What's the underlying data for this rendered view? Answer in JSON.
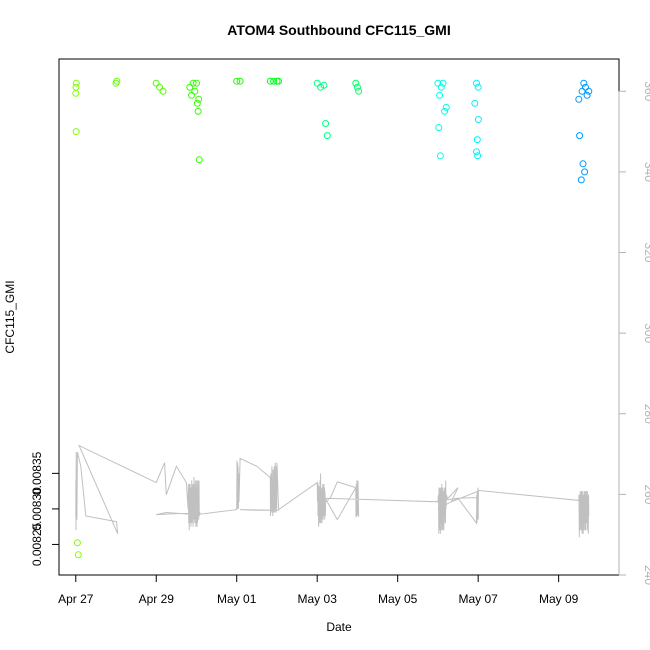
{
  "chart_data": {
    "type": "scatter",
    "title": "ATOM4 Southbound CFC115_GMI",
    "xlabel": "Date",
    "ylabel": "CFC115_GMI",
    "x_range": [
      "2017-04-26T14:00",
      "2017-05-10T12:00"
    ],
    "y_range": [
      0.008207,
      0.008933
    ],
    "y2_range": [
      240,
      368
    ],
    "x_ticks": [
      {
        "date": "2017-04-27",
        "label": "Apr 27"
      },
      {
        "date": "2017-04-29",
        "label": "Apr 29"
      },
      {
        "date": "2017-05-01",
        "label": "May 01"
      },
      {
        "date": "2017-05-03",
        "label": "May 03"
      },
      {
        "date": "2017-05-05",
        "label": "May 05"
      },
      {
        "date": "2017-05-07",
        "label": "May 07"
      },
      {
        "date": "2017-05-09",
        "label": "May 09"
      }
    ],
    "y_ticks": [
      {
        "value": 0.00825,
        "label": "0.00825"
      },
      {
        "value": 0.0083,
        "label": "0.00830"
      },
      {
        "value": 0.00835,
        "label": "0.00835"
      }
    ],
    "y2_ticks": [
      240,
      260,
      280,
      300,
      320,
      340,
      360
    ],
    "grid": false,
    "line_series": {
      "color": "#c0c0c0",
      "x": [
        "2017-04-27T00:00",
        "2017-04-27T00:05",
        "2017-04-27T00:10",
        "2017-04-27T00:15",
        "2017-04-27T00:25",
        "2017-04-27T00:40",
        "2017-04-27T01:00",
        "2017-04-27T03:00",
        "2017-04-27T06:00",
        "2017-04-28T00:20",
        "2017-04-28T01:00",
        "2017-04-27T02:00",
        "2017-04-29T00:00",
        "2017-04-29T05:00",
        "2017-04-29T06:00",
        "2017-04-29T12:00",
        "2017-04-29T18:00",
        "2017-04-29T19:00",
        "2017-04-29T19:10",
        "2017-04-29T19:20",
        "2017-04-29T19:30",
        "2017-04-29T19:40",
        "2017-04-29T19:50",
        "2017-04-29T20:00",
        "2017-04-29T20:10",
        "2017-04-29T20:20",
        "2017-04-29T20:30",
        "2017-04-29T20:40",
        "2017-04-29T20:50",
        "2017-04-29T21:00",
        "2017-04-29T21:10",
        "2017-04-29T21:20",
        "2017-04-29T21:30",
        "2017-04-29T21:40",
        "2017-04-29T21:50",
        "2017-04-29T22:00",
        "2017-04-29T22:10",
        "2017-04-29T22:20",
        "2017-04-29T22:30",
        "2017-04-29T22:40",
        "2017-04-29T22:50",
        "2017-04-29T23:00",
        "2017-04-29T23:10",
        "2017-04-29T23:20",
        "2017-04-29T23:30",
        "2017-04-29T23:40",
        "2017-04-29T23:50",
        "2017-04-30T00:00",
        "2017-04-30T00:10",
        "2017-04-30T00:20",
        "2017-04-30T00:30",
        "2017-04-30T00:40",
        "2017-04-30T00:50",
        "2017-04-30T01:00",
        "2017-04-30T01:10",
        "2017-04-30T01:20",
        "2017-04-30T01:30",
        "2017-04-30T01:40",
        "2017-04-30T02:00",
        "2017-04-29T00:00",
        "2017-04-29T06:00",
        "2017-04-30T00:00",
        "2017-05-01T00:00",
        "2017-05-01T00:10",
        "2017-05-01T00:20",
        "2017-05-01T00:30",
        "2017-05-01T00:40",
        "2017-05-01T00:50",
        "2017-05-01T01:00",
        "2017-05-01T01:10",
        "2017-05-01T01:20",
        "2017-05-01T02:00",
        "2017-05-01T12:00",
        "2017-05-01T20:00",
        "2017-05-01T20:10",
        "2017-05-01T20:20",
        "2017-05-01T20:30",
        "2017-05-01T20:40",
        "2017-05-01T20:50",
        "2017-05-01T21:00",
        "2017-05-01T21:10",
        "2017-05-01T21:20",
        "2017-05-01T21:30",
        "2017-05-01T21:40",
        "2017-05-01T21:50",
        "2017-05-01T22:00",
        "2017-05-01T22:10",
        "2017-05-01T22:20",
        "2017-05-01T22:30",
        "2017-05-01T22:40",
        "2017-05-01T22:50",
        "2017-05-01T23:00",
        "2017-05-01T23:10",
        "2017-05-01T23:20",
        "2017-05-01T23:30",
        "2017-05-01T23:40",
        "2017-05-01T23:50",
        "2017-05-02T00:00",
        "2017-05-02T01:00",
        "2017-05-01T02:00",
        "2017-05-01T12:00",
        "2017-05-02T00:00",
        "2017-05-02T01:00",
        "2017-05-03T00:00",
        "2017-05-03T00:10",
        "2017-05-03T00:20",
        "2017-05-03T00:30",
        "2017-05-03T00:40",
        "2017-05-03T00:50",
        "2017-05-03T01:00",
        "2017-05-03T01:10",
        "2017-05-03T01:20",
        "2017-05-03T01:30",
        "2017-05-03T01:40",
        "2017-05-03T01:50",
        "2017-05-03T02:00",
        "2017-05-03T02:10",
        "2017-05-03T02:20",
        "2017-05-03T02:30",
        "2017-05-03T02:40",
        "2017-05-03T02:50",
        "2017-05-03T03:00",
        "2017-05-03T03:10",
        "2017-05-03T03:20",
        "2017-05-03T03:30",
        "2017-05-03T03:40",
        "2017-05-03T03:50",
        "2017-05-03T04:00",
        "2017-05-03T04:10",
        "2017-05-03T04:20",
        "2017-05-03T04:30",
        "2017-05-03T04:40",
        "2017-05-03T04:50",
        "2017-05-03T05:00",
        "2017-05-03T08:00",
        "2017-05-03T12:00",
        "2017-05-03T23:00",
        "2017-05-03T23:10",
        "2017-05-03T23:20",
        "2017-05-03T23:30",
        "2017-05-03T23:40",
        "2017-05-03T23:50",
        "2017-05-04T00:00",
        "2017-05-04T00:10",
        "2017-05-04T00:20",
        "2017-05-04T00:30",
        "2017-05-04T00:40",
        "2017-05-03T23:00",
        "2017-05-03T12:00",
        "2017-05-03T00:00",
        "2017-05-03T05:00",
        "2017-05-06T00:00",
        "2017-05-06T00:10",
        "2017-05-06T00:20",
        "2017-05-06T00:30",
        "2017-05-06T00:40",
        "2017-05-06T00:50",
        "2017-05-06T01:00",
        "2017-05-06T01:10",
        "2017-05-06T01:20",
        "2017-05-06T01:30",
        "2017-05-06T01:40",
        "2017-05-06T01:50",
        "2017-05-06T02:00",
        "2017-05-06T02:10",
        "2017-05-06T02:20",
        "2017-05-06T02:30",
        "2017-05-06T02:40",
        "2017-05-06T02:50",
        "2017-05-06T03:00",
        "2017-05-06T03:10",
        "2017-05-06T03:20",
        "2017-05-06T03:30",
        "2017-05-06T03:40",
        "2017-05-06T03:50",
        "2017-05-06T04:00",
        "2017-05-06T04:10",
        "2017-05-06T04:20",
        "2017-05-06T04:30",
        "2017-05-06T04:40",
        "2017-05-06T04:50",
        "2017-05-06T05:00",
        "2017-05-06T06:00",
        "2017-05-06T12:00",
        "2017-05-06T23:00",
        "2017-05-06T23:10",
        "2017-05-06T23:20",
        "2017-05-06T23:30",
        "2017-05-06T23:40",
        "2017-05-06T23:50",
        "2017-05-07T00:00",
        "2017-05-07T00:10",
        "2017-05-06T08:00",
        "2017-05-06T12:00",
        "2017-05-06T00:00",
        "2017-05-06T12:00",
        "2017-05-07T00:00",
        "2017-05-07T00:10",
        "2017-05-09T12:00",
        "2017-05-09T12:10",
        "2017-05-09T12:20",
        "2017-05-09T12:30",
        "2017-05-09T12:40",
        "2017-05-09T12:50",
        "2017-05-09T13:00",
        "2017-05-09T13:10",
        "2017-05-09T13:20",
        "2017-05-09T13:30",
        "2017-05-09T13:40",
        "2017-05-09T13:50",
        "2017-05-09T14:00",
        "2017-05-09T14:10",
        "2017-05-09T14:20",
        "2017-05-09T14:30",
        "2017-05-09T14:40",
        "2017-05-09T14:50",
        "2017-05-09T15:00",
        "2017-05-09T15:10",
        "2017-05-09T15:20",
        "2017-05-09T15:30",
        "2017-05-09T15:40",
        "2017-05-09T15:50",
        "2017-05-09T16:00",
        "2017-05-09T16:10",
        "2017-05-09T16:20",
        "2017-05-09T16:30",
        "2017-05-09T16:40",
        "2017-05-09T16:50",
        "2017-05-09T17:00",
        "2017-05-09T17:10",
        "2017-05-09T17:20",
        "2017-05-09T17:30",
        "2017-05-09T17:40",
        "2017-05-09T17:50",
        "2017-05-09T18:00"
      ],
      "y": [
        0.00829,
        0.00834,
        0.00827,
        0.00838,
        0.00829,
        0.008285,
        0.00838,
        0.00836,
        0.00829,
        0.008282,
        0.008265,
        0.008389,
        0.008337,
        0.008365,
        0.00832,
        0.00836,
        0.008337,
        0.0083,
        0.008335,
        0.00828,
        0.00833,
        0.00827,
        0.008335,
        0.00829,
        0.008335,
        0.00828,
        0.00833,
        0.008275,
        0.00833,
        0.00829,
        0.00834,
        0.00828,
        0.008335,
        0.00829,
        0.00833,
        0.008275,
        0.008335,
        0.00829,
        0.008345,
        0.008285,
        0.00833,
        0.00828,
        0.008335,
        0.00829,
        0.00834,
        0.008275,
        0.00833,
        0.008285,
        0.00834,
        0.008275,
        0.00833,
        0.00828,
        0.00834,
        0.00829,
        0.00833,
        0.008285,
        0.00834,
        0.00829,
        0.008295,
        0.008292,
        0.008295,
        0.008292,
        0.008299,
        0.008368,
        0.0083,
        0.008365,
        0.0083,
        0.00836,
        0.0083,
        0.00835,
        0.00831,
        0.008371,
        0.00836,
        0.008344,
        0.00829,
        0.00835,
        0.0083,
        0.00834,
        0.008295,
        0.00836,
        0.0083,
        0.00834,
        0.00829,
        0.008355,
        0.0083,
        0.008345,
        0.008295,
        0.00836,
        0.0083,
        0.00835,
        0.008295,
        0.008365,
        0.0083,
        0.00835,
        0.008295,
        0.00836,
        0.0083,
        0.008365,
        0.008298,
        0.008299,
        0.008298,
        0.008298,
        0.008299,
        0.008337,
        0.00831,
        0.008337,
        0.00829,
        0.00833,
        0.008275,
        0.00832,
        0.008285,
        0.00833,
        0.00828,
        0.00834,
        0.00829,
        0.00835,
        0.00828,
        0.00833,
        0.008285,
        0.008325,
        0.00828,
        0.00833,
        0.00829,
        0.008335,
        0.008285,
        0.00833,
        0.00829,
        0.008335,
        0.00829,
        0.00833,
        0.008285,
        0.008325,
        0.00829,
        0.00831,
        0.008316,
        0.008338,
        0.00833,
        0.008288,
        0.008335,
        0.00829,
        0.00834,
        0.00829,
        0.00833,
        0.008295,
        0.00834,
        0.008315,
        0.008289,
        0.00833,
        0.008285,
        0.008335,
        0.008315,
        0.00831,
        0.008317,
        0.00832,
        0.008265,
        0.00833,
        0.008275,
        0.00833,
        0.00827,
        0.008325,
        0.008265,
        0.00833,
        0.00828,
        0.008325,
        0.00827,
        0.008335,
        0.00828,
        0.00833,
        0.00827,
        0.00832,
        0.00828,
        0.008325,
        0.00827,
        0.00833,
        0.00828,
        0.008325,
        0.00829,
        0.00833,
        0.00828,
        0.00834,
        0.0083,
        0.00832,
        0.008313,
        0.008315,
        0.00828,
        0.00832,
        0.00828,
        0.008325,
        0.008285,
        0.00833,
        0.008285,
        0.008325,
        0.00831,
        0.00833,
        0.0083,
        0.008315,
        0.008316,
        0.008326,
        0.008312,
        0.00832,
        0.00826,
        0.00832,
        0.00827,
        0.008325,
        0.00828,
        0.00832,
        0.00827,
        0.008325,
        0.00828,
        0.00832,
        0.008265,
        0.008325,
        0.00828,
        0.00832,
        0.008265,
        0.00832,
        0.00828,
        0.008325,
        0.00827,
        0.00832,
        0.00828,
        0.008325,
        0.00827,
        0.00832,
        0.00828,
        0.008325,
        0.00828,
        0.00832,
        0.00827,
        0.008325,
        0.00828,
        0.00832,
        0.008265,
        0.00832,
        0.00829
      ]
    },
    "point_series": {
      "axis": "right",
      "marker": "open-circle",
      "color_by": "value",
      "points": [
        {
          "x": "2017-04-27T00:00",
          "y": 359.5,
          "color": "#7fff00"
        },
        {
          "x": "2017-04-27T00:10",
          "y": 361,
          "color": "#7fff00"
        },
        {
          "x": "2017-04-27T00:20",
          "y": 362,
          "color": "#7fff00"
        },
        {
          "x": "2017-04-27T00:15",
          "y": 350,
          "color": "#7fff00"
        },
        {
          "x": "2017-04-27T01:00",
          "y": 248,
          "color": "#7fff00"
        },
        {
          "x": "2017-04-27T01:30",
          "y": 245,
          "color": "#7fff00"
        },
        {
          "x": "2017-04-28T00:00",
          "y": 362,
          "color": "#66ff00"
        },
        {
          "x": "2017-04-28T00:30",
          "y": 362.5,
          "color": "#66ff00"
        },
        {
          "x": "2017-04-29T00:00",
          "y": 362,
          "color": "#4dff00"
        },
        {
          "x": "2017-04-29T02:00",
          "y": 361,
          "color": "#4dff00"
        },
        {
          "x": "2017-04-29T04:00",
          "y": 360,
          "color": "#4dff00"
        },
        {
          "x": "2017-04-29T20:00",
          "y": 361,
          "color": "#33ff00"
        },
        {
          "x": "2017-04-29T21:00",
          "y": 359,
          "color": "#33ff00"
        },
        {
          "x": "2017-04-29T22:00",
          "y": 362,
          "color": "#33ff00"
        },
        {
          "x": "2017-04-29T23:00",
          "y": 360,
          "color": "#33ff00"
        },
        {
          "x": "2017-04-30T00:00",
          "y": 362,
          "color": "#33ff00"
        },
        {
          "x": "2017-04-30T00:30",
          "y": 357,
          "color": "#33ff00"
        },
        {
          "x": "2017-04-30T01:00",
          "y": 355,
          "color": "#33ff00"
        },
        {
          "x": "2017-04-30T01:20",
          "y": 358,
          "color": "#33ff00"
        },
        {
          "x": "2017-04-30T01:40",
          "y": 343,
          "color": "#33ff00"
        },
        {
          "x": "2017-05-01T00:00",
          "y": 362.5,
          "color": "#1aff00"
        },
        {
          "x": "2017-05-01T02:00",
          "y": 362.5,
          "color": "#1aff00"
        },
        {
          "x": "2017-05-01T20:00",
          "y": 362.5,
          "color": "#00ff1a"
        },
        {
          "x": "2017-05-01T22:00",
          "y": 362.5,
          "color": "#00ff1a"
        },
        {
          "x": "2017-05-02T00:00",
          "y": 362.5,
          "color": "#00ff1a"
        },
        {
          "x": "2017-05-02T01:00",
          "y": 362.5,
          "color": "#00ff1a"
        },
        {
          "x": "2017-05-03T00:00",
          "y": 362,
          "color": "#00ff80"
        },
        {
          "x": "2017-05-03T02:00",
          "y": 361,
          "color": "#00ff80"
        },
        {
          "x": "2017-05-03T04:00",
          "y": 361.5,
          "color": "#00ff80"
        },
        {
          "x": "2017-05-03T05:00",
          "y": 352,
          "color": "#00ff80"
        },
        {
          "x": "2017-05-03T06:00",
          "y": 349,
          "color": "#00ff80"
        },
        {
          "x": "2017-05-03T23:00",
          "y": 362,
          "color": "#00ff66"
        },
        {
          "x": "2017-05-04T00:00",
          "y": 361,
          "color": "#00ff66"
        },
        {
          "x": "2017-05-04T00:40",
          "y": 360,
          "color": "#00ff66"
        },
        {
          "x": "2017-05-06T00:00",
          "y": 362,
          "color": "#00ffe6"
        },
        {
          "x": "2017-05-06T01:00",
          "y": 359,
          "color": "#00ffe6"
        },
        {
          "x": "2017-05-06T02:00",
          "y": 361,
          "color": "#00ffe6"
        },
        {
          "x": "2017-05-06T03:00",
          "y": 362,
          "color": "#00ffe6"
        },
        {
          "x": "2017-05-06T04:00",
          "y": 355,
          "color": "#00ffe6"
        },
        {
          "x": "2017-05-06T05:00",
          "y": 356,
          "color": "#00ffe6"
        },
        {
          "x": "2017-05-06T00:30",
          "y": 351,
          "color": "#00ffe6"
        },
        {
          "x": "2017-05-06T01:30",
          "y": 344,
          "color": "#00ffe6"
        },
        {
          "x": "2017-05-06T23:00",
          "y": 362,
          "color": "#00f0ff"
        },
        {
          "x": "2017-05-07T00:00",
          "y": 361,
          "color": "#00f0ff"
        },
        {
          "x": "2017-05-06T22:00",
          "y": 357,
          "color": "#00f0ff"
        },
        {
          "x": "2017-05-07T00:10",
          "y": 353,
          "color": "#00f0ff"
        },
        {
          "x": "2017-05-06T23:30",
          "y": 348,
          "color": "#00f0ff"
        },
        {
          "x": "2017-05-06T23:00",
          "y": 345,
          "color": "#00f0ff"
        },
        {
          "x": "2017-05-06T23:40",
          "y": 344,
          "color": "#00f0ff"
        },
        {
          "x": "2017-05-09T12:00",
          "y": 358,
          "color": "#0099ff"
        },
        {
          "x": "2017-05-09T14:00",
          "y": 360,
          "color": "#0099ff"
        },
        {
          "x": "2017-05-09T15:00",
          "y": 362,
          "color": "#0099ff"
        },
        {
          "x": "2017-05-09T16:00",
          "y": 361,
          "color": "#0099ff"
        },
        {
          "x": "2017-05-09T17:00",
          "y": 359,
          "color": "#0099ff"
        },
        {
          "x": "2017-05-09T18:00",
          "y": 360,
          "color": "#0099ff"
        },
        {
          "x": "2017-05-09T12:30",
          "y": 349,
          "color": "#0099ff"
        },
        {
          "x": "2017-05-09T14:30",
          "y": 342,
          "color": "#0099ff"
        },
        {
          "x": "2017-05-09T15:30",
          "y": 340,
          "color": "#0099ff"
        },
        {
          "x": "2017-05-09T13:30",
          "y": 338,
          "color": "#0099ff"
        }
      ]
    }
  }
}
